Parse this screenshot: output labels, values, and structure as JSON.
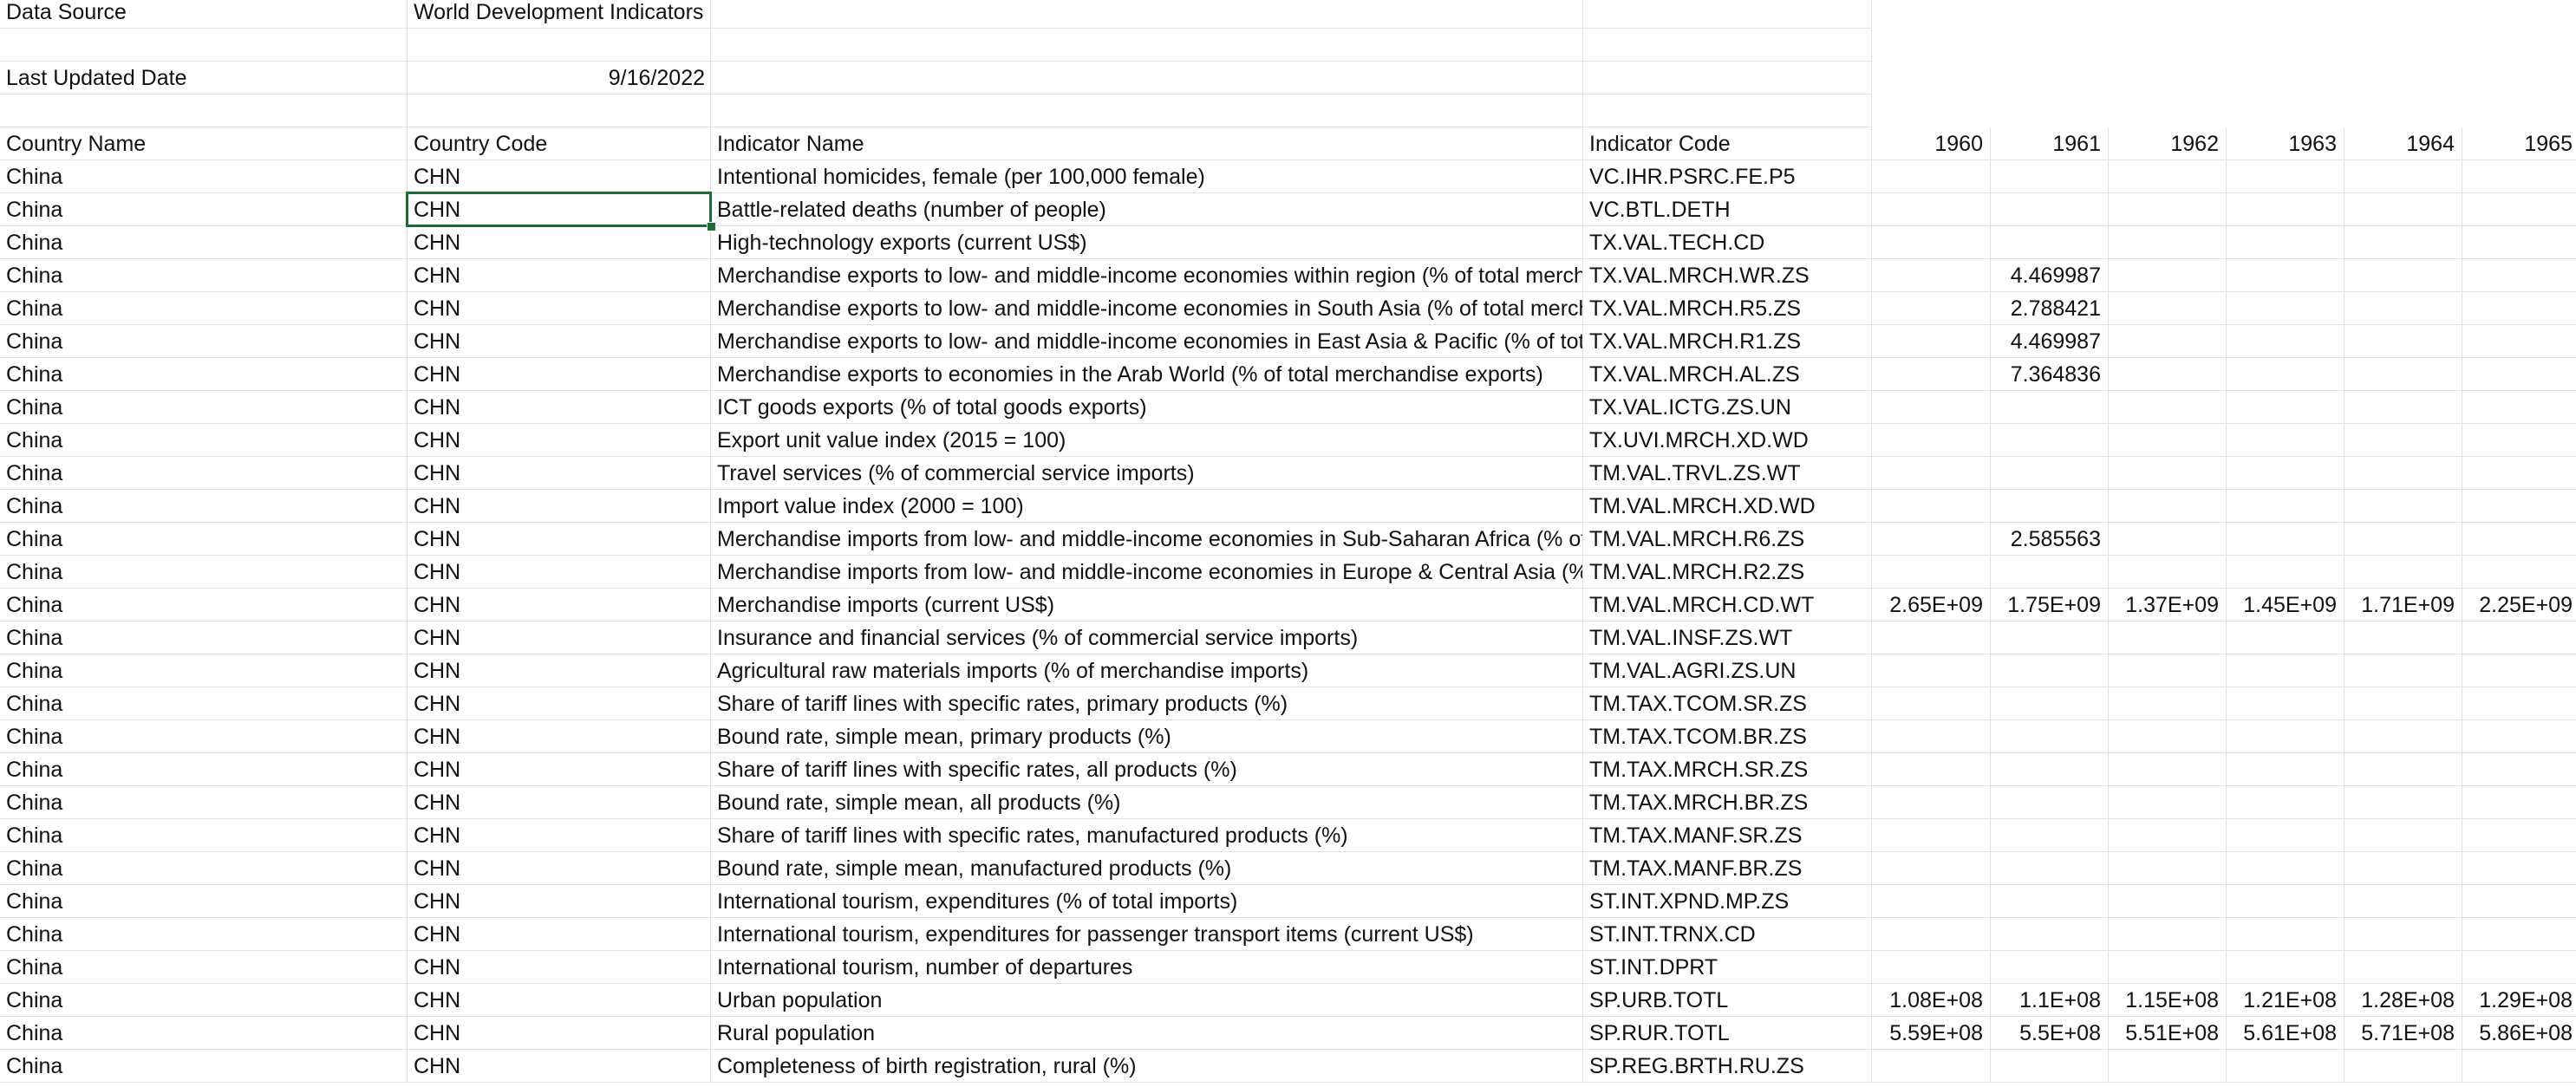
{
  "meta": {
    "data_source_label": "Data Source",
    "data_source_value": "World Development Indicators",
    "last_updated_label": "Last Updated Date",
    "last_updated_value": "9/16/2022"
  },
  "headers": [
    "Country Name",
    "Country Code",
    "Indicator Name",
    "Indicator Code",
    "1960",
    "1961",
    "1962",
    "1963",
    "1964",
    "1965"
  ],
  "rows": [
    [
      "China",
      "CHN",
      "Intentional homicides, female (per 100,000 female)",
      "VC.IHR.PSRC.FE.P5",
      "",
      "",
      "",
      "",
      "",
      ""
    ],
    [
      "China",
      "CHN",
      "Battle-related deaths (number of people)",
      "VC.BTL.DETH",
      "",
      "",
      "",
      "",
      "",
      ""
    ],
    [
      "China",
      "CHN",
      "High-technology exports (current US$)",
      "TX.VAL.TECH.CD",
      "",
      "",
      "",
      "",
      "",
      ""
    ],
    [
      "China",
      "CHN",
      "Merchandise exports to low- and middle-income economies within region (% of total merchandise exports)",
      "TX.VAL.MRCH.WR.ZS",
      "",
      "4.469987",
      "",
      "",
      "",
      ""
    ],
    [
      "China",
      "CHN",
      "Merchandise exports to low- and middle-income economies in South Asia (% of total merchandise exports)",
      "TX.VAL.MRCH.R5.ZS",
      "",
      "2.788421",
      "",
      "",
      "",
      ""
    ],
    [
      "China",
      "CHN",
      "Merchandise exports to low- and middle-income economies in East Asia & Pacific (% of total merchandise exports)",
      "TX.VAL.MRCH.R1.ZS",
      "",
      "4.469987",
      "",
      "",
      "",
      ""
    ],
    [
      "China",
      "CHN",
      "Merchandise exports to economies in the Arab World (% of total merchandise exports)",
      "TX.VAL.MRCH.AL.ZS",
      "",
      "7.364836",
      "",
      "",
      "",
      ""
    ],
    [
      "China",
      "CHN",
      "ICT goods exports (% of total goods exports)",
      "TX.VAL.ICTG.ZS.UN",
      "",
      "",
      "",
      "",
      "",
      ""
    ],
    [
      "China",
      "CHN",
      "Export unit value index (2015 = 100)",
      "TX.UVI.MRCH.XD.WD",
      "",
      "",
      "",
      "",
      "",
      ""
    ],
    [
      "China",
      "CHN",
      "Travel services (% of commercial service imports)",
      "TM.VAL.TRVL.ZS.WT",
      "",
      "",
      "",
      "",
      "",
      ""
    ],
    [
      "China",
      "CHN",
      "Import value index (2000 = 100)",
      "TM.VAL.MRCH.XD.WD",
      "",
      "",
      "",
      "",
      "",
      ""
    ],
    [
      "China",
      "CHN",
      "Merchandise imports from low- and middle-income economies in Sub-Saharan Africa (% of total merchandise imports)",
      "TM.VAL.MRCH.R6.ZS",
      "",
      "2.585563",
      "",
      "",
      "",
      ""
    ],
    [
      "China",
      "CHN",
      "Merchandise imports from low- and middle-income economies in Europe & Central Asia (% of total merchandise imports)",
      "TM.VAL.MRCH.R2.ZS",
      "",
      "",
      "",
      "",
      "",
      ""
    ],
    [
      "China",
      "CHN",
      "Merchandise imports (current US$)",
      "TM.VAL.MRCH.CD.WT",
      "2.65E+09",
      "1.75E+09",
      "1.37E+09",
      "1.45E+09",
      "1.71E+09",
      "2.25E+09"
    ],
    [
      "China",
      "CHN",
      "Insurance and financial services (% of commercial service imports)",
      "TM.VAL.INSF.ZS.WT",
      "",
      "",
      "",
      "",
      "",
      ""
    ],
    [
      "China",
      "CHN",
      "Agricultural raw materials imports (% of merchandise imports)",
      "TM.VAL.AGRI.ZS.UN",
      "",
      "",
      "",
      "",
      "",
      ""
    ],
    [
      "China",
      "CHN",
      "Share of tariff lines with specific rates, primary products (%)",
      "TM.TAX.TCOM.SR.ZS",
      "",
      "",
      "",
      "",
      "",
      ""
    ],
    [
      "China",
      "CHN",
      "Bound rate, simple mean, primary products (%)",
      "TM.TAX.TCOM.BR.ZS",
      "",
      "",
      "",
      "",
      "",
      ""
    ],
    [
      "China",
      "CHN",
      "Share of tariff lines with specific rates, all products (%)",
      "TM.TAX.MRCH.SR.ZS",
      "",
      "",
      "",
      "",
      "",
      ""
    ],
    [
      "China",
      "CHN",
      "Bound rate, simple mean, all products (%)",
      "TM.TAX.MRCH.BR.ZS",
      "",
      "",
      "",
      "",
      "",
      ""
    ],
    [
      "China",
      "CHN",
      "Share of tariff lines with specific rates, manufactured products (%)",
      "TM.TAX.MANF.SR.ZS",
      "",
      "",
      "",
      "",
      "",
      ""
    ],
    [
      "China",
      "CHN",
      "Bound rate, simple mean, manufactured products (%)",
      "TM.TAX.MANF.BR.ZS",
      "",
      "",
      "",
      "",
      "",
      ""
    ],
    [
      "China",
      "CHN",
      "International tourism, expenditures (% of total imports)",
      "ST.INT.XPND.MP.ZS",
      "",
      "",
      "",
      "",
      "",
      ""
    ],
    [
      "China",
      "CHN",
      "International tourism, expenditures for passenger transport items (current US$)",
      "ST.INT.TRNX.CD",
      "",
      "",
      "",
      "",
      "",
      ""
    ],
    [
      "China",
      "CHN",
      "International tourism, number of departures",
      "ST.INT.DPRT",
      "",
      "",
      "",
      "",
      "",
      ""
    ],
    [
      "China",
      "CHN",
      "Urban population",
      "SP.URB.TOTL",
      "1.08E+08",
      "1.1E+08",
      "1.15E+08",
      "1.21E+08",
      "1.28E+08",
      "1.29E+08"
    ],
    [
      "China",
      "CHN",
      "Rural population",
      "SP.RUR.TOTL",
      "5.59E+08",
      "5.5E+08",
      "5.51E+08",
      "5.61E+08",
      "5.71E+08",
      "5.86E+08"
    ],
    [
      "China",
      "CHN",
      "Completeness of birth registration, rural (%)",
      "SP.REG.BRTH.RU.ZS",
      "",
      "",
      "",
      "",
      "",
      ""
    ]
  ],
  "selected_cell": {
    "row": 1,
    "col": 1
  }
}
